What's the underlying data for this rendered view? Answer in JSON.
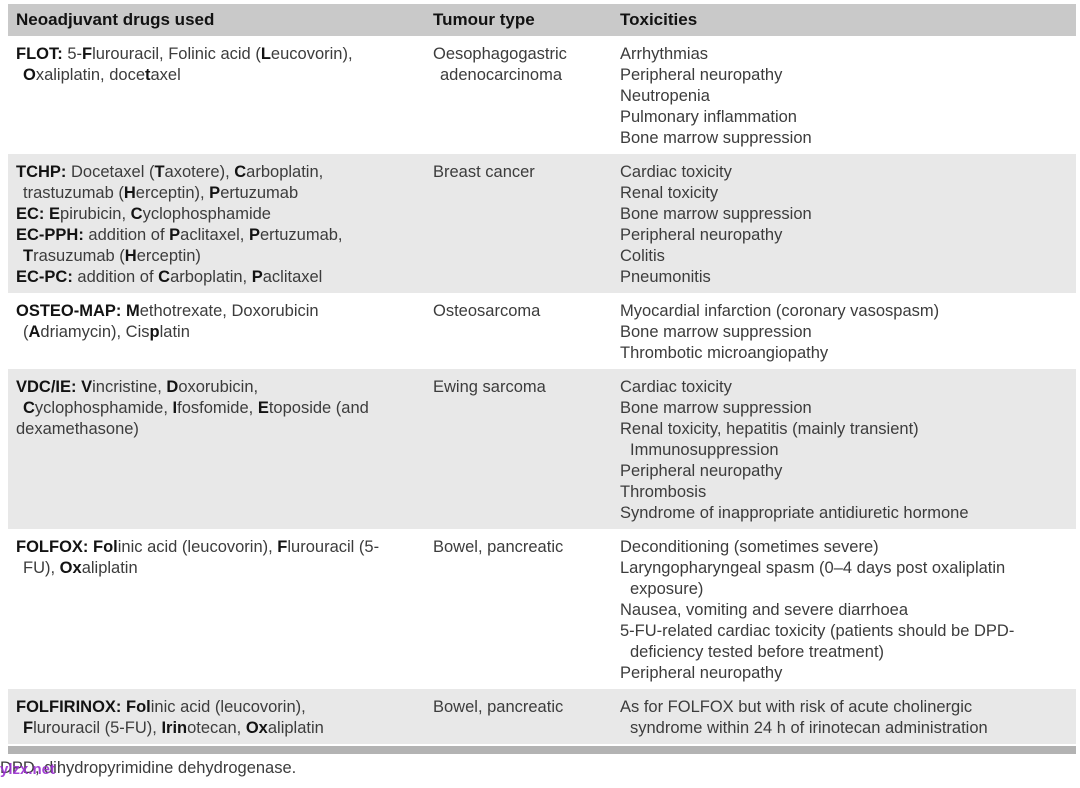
{
  "header": {
    "col1": "Neoadjuvant drugs used",
    "col2": "Tumour type",
    "col3": "Toxicities"
  },
  "colors": {
    "header-bg": "#c9c9c9",
    "shade-bg": "#e8e8e8",
    "bar-bg": "#b3b3b3",
    "watermark-color": "#9b2fd0"
  },
  "watermark": {
    "text": "ylzx.net"
  },
  "footer": {
    "note": "DPD, dihydropyrimidine dehydrogenase."
  },
  "rows": [
    {
      "shaded": false,
      "drugs": [
        {
          "indent": false,
          "segs": [
            [
              "b",
              "FLOT: "
            ],
            [
              "n",
              "5-"
            ],
            [
              "b",
              "F"
            ],
            [
              "n",
              "lurouracil, Folinic acid ("
            ],
            [
              "b",
              "L"
            ],
            [
              "n",
              "eucovorin),"
            ]
          ]
        },
        {
          "indent": true,
          "segs": [
            [
              "b",
              "O"
            ],
            [
              "n",
              "xaliplatin, doce"
            ],
            [
              "b",
              "t"
            ],
            [
              "n",
              "axel"
            ]
          ]
        }
      ],
      "tumour": [
        {
          "indent": false,
          "text": "Oesophagogastric"
        },
        {
          "indent": true,
          "text": "adenocarcinoma"
        }
      ],
      "tox": [
        {
          "indent": false,
          "text": "Arrhythmias"
        },
        {
          "indent": false,
          "text": "Peripheral neuropathy"
        },
        {
          "indent": false,
          "text": "Neutropenia"
        },
        {
          "indent": false,
          "text": "Pulmonary inflammation"
        },
        {
          "indent": false,
          "text": "Bone marrow suppression"
        }
      ]
    },
    {
      "shaded": true,
      "drugs": [
        {
          "indent": false,
          "segs": [
            [
              "b",
              "TCHP: "
            ],
            [
              "n",
              "Docetaxel ("
            ],
            [
              "b",
              "T"
            ],
            [
              "n",
              "axotere), "
            ],
            [
              "b",
              "C"
            ],
            [
              "n",
              "arboplatin,"
            ]
          ]
        },
        {
          "indent": true,
          "segs": [
            [
              "n",
              "trastuzumab ("
            ],
            [
              "b",
              "H"
            ],
            [
              "n",
              "erceptin), "
            ],
            [
              "b",
              "P"
            ],
            [
              "n",
              "ertuzumab"
            ]
          ]
        },
        {
          "indent": false,
          "segs": [
            [
              "b",
              "EC: E"
            ],
            [
              "n",
              "pirubicin, "
            ],
            [
              "b",
              "C"
            ],
            [
              "n",
              "yclophosphamide"
            ]
          ]
        },
        {
          "indent": false,
          "segs": [
            [
              "b",
              "EC-PPH: "
            ],
            [
              "n",
              "addition of "
            ],
            [
              "b",
              "P"
            ],
            [
              "n",
              "aclitaxel, "
            ],
            [
              "b",
              "P"
            ],
            [
              "n",
              "ertuzumab,"
            ]
          ]
        },
        {
          "indent": true,
          "segs": [
            [
              "b",
              "T"
            ],
            [
              "n",
              "rasuzumab ("
            ],
            [
              "b",
              "H"
            ],
            [
              "n",
              "erceptin)"
            ]
          ]
        },
        {
          "indent": false,
          "segs": [
            [
              "b",
              "EC-PC: "
            ],
            [
              "n",
              "addition of "
            ],
            [
              "b",
              "C"
            ],
            [
              "n",
              "arboplatin, "
            ],
            [
              "b",
              "P"
            ],
            [
              "n",
              "aclitaxel"
            ]
          ]
        }
      ],
      "tumour": [
        {
          "indent": false,
          "text": "Breast cancer"
        }
      ],
      "tox": [
        {
          "indent": false,
          "text": "Cardiac toxicity"
        },
        {
          "indent": false,
          "text": "Renal toxicity"
        },
        {
          "indent": false,
          "text": "Bone marrow suppression"
        },
        {
          "indent": false,
          "text": "Peripheral neuropathy"
        },
        {
          "indent": false,
          "text": "Colitis"
        },
        {
          "indent": false,
          "text": "Pneumonitis"
        }
      ]
    },
    {
      "shaded": false,
      "drugs": [
        {
          "indent": false,
          "segs": [
            [
              "b",
              "OSTEO-MAP: M"
            ],
            [
              "n",
              "ethotrexate, Doxorubicin"
            ]
          ]
        },
        {
          "indent": true,
          "segs": [
            [
              "n",
              "("
            ],
            [
              "b",
              "A"
            ],
            [
              "n",
              "driamycin), Cis"
            ],
            [
              "b",
              "p"
            ],
            [
              "n",
              "latin"
            ]
          ]
        }
      ],
      "tumour": [
        {
          "indent": false,
          "text": "Osteosarcoma"
        }
      ],
      "tox": [
        {
          "indent": false,
          "text": "Myocardial infarction (coronary vasospasm)"
        },
        {
          "indent": false,
          "text": "Bone marrow suppression"
        },
        {
          "indent": false,
          "text": "Thrombotic microangiopathy"
        }
      ]
    },
    {
      "shaded": true,
      "drugs": [
        {
          "indent": false,
          "segs": [
            [
              "b",
              "VDC/IE: V"
            ],
            [
              "n",
              "incristine, "
            ],
            [
              "b",
              "D"
            ],
            [
              "n",
              "oxorubicin,"
            ]
          ]
        },
        {
          "indent": true,
          "segs": [
            [
              "b",
              "C"
            ],
            [
              "n",
              "yclophosphamide, "
            ],
            [
              "b",
              "I"
            ],
            [
              "n",
              "fosfomide, "
            ],
            [
              "b",
              "E"
            ],
            [
              "n",
              "toposide (and"
            ]
          ]
        },
        {
          "indent": false,
          "segs": [
            [
              "n",
              "dexamethasone)"
            ]
          ]
        }
      ],
      "tumour": [
        {
          "indent": false,
          "text": "Ewing sarcoma"
        }
      ],
      "tox": [
        {
          "indent": false,
          "text": "Cardiac toxicity"
        },
        {
          "indent": false,
          "text": "Bone marrow suppression"
        },
        {
          "indent": false,
          "text": "Renal toxicity, hepatitis (mainly transient)"
        },
        {
          "indent": true,
          "text": "Immunosuppression"
        },
        {
          "indent": false,
          "text": "Peripheral neuropathy"
        },
        {
          "indent": false,
          "text": "Thrombosis"
        },
        {
          "indent": false,
          "text": "Syndrome of inappropriate antidiuretic hormone"
        }
      ]
    },
    {
      "shaded": false,
      "drugs": [
        {
          "indent": false,
          "segs": [
            [
              "b",
              "FOLFOX: Fol"
            ],
            [
              "n",
              "inic acid (leucovorin), "
            ],
            [
              "b",
              "F"
            ],
            [
              "n",
              "lurouracil (5-"
            ]
          ]
        },
        {
          "indent": true,
          "segs": [
            [
              "n",
              "FU), "
            ],
            [
              "b",
              "Ox"
            ],
            [
              "n",
              "aliplatin"
            ]
          ]
        }
      ],
      "tumour": [
        {
          "indent": false,
          "text": "Bowel, pancreatic"
        }
      ],
      "tox": [
        {
          "indent": false,
          "text": "Deconditioning (sometimes severe)"
        },
        {
          "indent": false,
          "text": "Laryngopharyngeal spasm (0–4 days post oxaliplatin"
        },
        {
          "indent": true,
          "text": "exposure)"
        },
        {
          "indent": false,
          "text": "Nausea, vomiting and severe diarrhoea"
        },
        {
          "indent": false,
          "text": "5-FU-related cardiac toxicity (patients should be DPD-"
        },
        {
          "indent": true,
          "text": "deficiency tested before treatment)"
        },
        {
          "indent": false,
          "text": "Peripheral neuropathy"
        }
      ]
    },
    {
      "shaded": true,
      "drugs": [
        {
          "indent": false,
          "segs": [
            [
              "b",
              "FOLFIRINOX: Fol"
            ],
            [
              "n",
              "inic acid (leucovorin),"
            ]
          ]
        },
        {
          "indent": true,
          "segs": [
            [
              "b",
              "F"
            ],
            [
              "n",
              "lurouracil (5-FU), "
            ],
            [
              "b",
              "Irin"
            ],
            [
              "n",
              "otecan, "
            ],
            [
              "b",
              "Ox"
            ],
            [
              "n",
              "aliplatin"
            ]
          ]
        }
      ],
      "tumour": [
        {
          "indent": false,
          "text": "Bowel, pancreatic"
        }
      ],
      "tox": [
        {
          "indent": false,
          "text": "As for FOLFOX but with risk of acute cholinergic"
        },
        {
          "indent": true,
          "text": "syndrome within 24 h of irinotecan administration"
        }
      ]
    }
  ]
}
